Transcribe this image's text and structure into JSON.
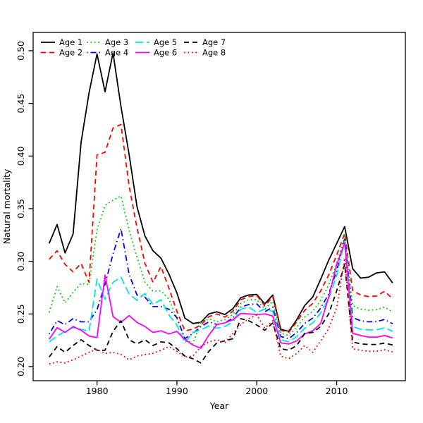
{
  "figure": {
    "background": "#ffffff",
    "text_color": "#000000"
  },
  "chart_data": {
    "type": "line",
    "title": "",
    "xlabel": "Year",
    "ylabel": "Natural mortality",
    "xlim": [
      1972.0,
      2018.6
    ],
    "ylim": [
      0.1866,
      0.5174
    ],
    "x_ticks": [
      1980,
      1990,
      2000,
      2010
    ],
    "y_ticks": [
      0.2,
      0.25,
      0.3,
      0.35,
      0.4,
      0.45,
      0.5
    ],
    "grid": false,
    "legend_position": "top-left",
    "legend_columns": 4,
    "legend_rows": 2,
    "x": [
      1974,
      1975,
      1976,
      1977,
      1978,
      1979,
      1980,
      1981,
      1982,
      1983,
      1984,
      1985,
      1986,
      1987,
      1988,
      1989,
      1990,
      1991,
      1992,
      1993,
      1994,
      1995,
      1996,
      1997,
      1998,
      1999,
      2000,
      2001,
      2002,
      2003,
      2004,
      2005,
      2006,
      2007,
      2008,
      2009,
      2010,
      2011,
      2012,
      2013,
      2014,
      2015,
      2016,
      2017
    ],
    "series": [
      {
        "name": "Age 1",
        "color": "#000000",
        "line_style": "solid",
        "dash": "",
        "values": [
          0.317,
          0.335,
          0.308,
          0.326,
          0.413,
          0.46,
          0.497,
          0.461,
          0.498,
          0.447,
          0.402,
          0.352,
          0.324,
          0.31,
          0.303,
          0.288,
          0.27,
          0.246,
          0.241,
          0.242,
          0.25,
          0.252,
          0.2495,
          0.255,
          0.2655,
          0.268,
          0.2685,
          0.2595,
          0.268,
          0.2355,
          0.2335,
          0.2445,
          0.258,
          0.266,
          0.283,
          0.301,
          0.317,
          0.333,
          0.293,
          0.284,
          0.285,
          0.289,
          0.29,
          0.2795
        ]
      },
      {
        "name": "Age 2",
        "color": "#FF0000",
        "line_style": "dashed",
        "dash": "7,5",
        "values": [
          0.302,
          0.31,
          0.297,
          0.29,
          0.298,
          0.28,
          0.401,
          0.4035,
          0.4265,
          0.43,
          0.372,
          0.332,
          0.298,
          0.28,
          0.295,
          0.2745,
          0.2525,
          0.234,
          0.2355,
          0.2395,
          0.2475,
          0.25,
          0.247,
          0.2525,
          0.2635,
          0.2665,
          0.2675,
          0.2575,
          0.2665,
          0.2345,
          0.2325,
          0.2425,
          0.2535,
          0.26,
          0.272,
          0.287,
          0.306,
          0.3265,
          0.272,
          0.268,
          0.2665,
          0.267,
          0.2715,
          0.2645
        ]
      },
      {
        "name": "Age 3",
        "color": "#00CD00",
        "line_style": "dotted",
        "dash": "1.8,3.6",
        "values": [
          0.2515,
          0.276,
          0.2605,
          0.2705,
          0.279,
          0.278,
          0.33,
          0.353,
          0.358,
          0.362,
          0.33,
          0.304,
          0.28,
          0.2715,
          0.272,
          0.264,
          0.246,
          0.2265,
          0.2215,
          0.2425,
          0.2455,
          0.2425,
          0.2445,
          0.2495,
          0.26,
          0.2635,
          0.2635,
          0.2545,
          0.262,
          0.2315,
          0.2295,
          0.2375,
          0.247,
          0.2525,
          0.263,
          0.2775,
          0.298,
          0.324,
          0.258,
          0.2545,
          0.2535,
          0.254,
          0.2565,
          0.2518
        ]
      },
      {
        "name": "Age 4",
        "color": "#0000FF",
        "line_style": "dotdash",
        "dash": "1.5,4,8,4",
        "values": [
          0.231,
          0.2435,
          0.24,
          0.2455,
          0.2425,
          0.2425,
          0.254,
          0.278,
          0.307,
          0.331,
          0.288,
          0.268,
          0.266,
          0.257,
          0.257,
          0.2545,
          0.2465,
          0.2265,
          0.2315,
          0.238,
          0.2425,
          0.24,
          0.2415,
          0.246,
          0.2565,
          0.259,
          0.2595,
          0.252,
          0.2565,
          0.2285,
          0.2265,
          0.2325,
          0.241,
          0.246,
          0.2555,
          0.269,
          0.291,
          0.321,
          0.2465,
          0.2435,
          0.2425,
          0.2428,
          0.2447,
          0.2407
        ]
      },
      {
        "name": "Age 5",
        "color": "#00E5E5",
        "line_style": "longdash",
        "dash": "11,5",
        "values": [
          0.2235,
          0.229,
          0.2335,
          0.237,
          0.2355,
          0.2335,
          0.283,
          0.264,
          0.28,
          0.285,
          0.269,
          0.263,
          0.2695,
          0.259,
          0.2635,
          0.249,
          0.2395,
          0.2225,
          0.2325,
          0.235,
          0.2385,
          0.2365,
          0.238,
          0.2425,
          0.2545,
          0.2565,
          0.2515,
          0.2545,
          0.2525,
          0.2255,
          0.2235,
          0.2285,
          0.2365,
          0.2415,
          0.251,
          0.2645,
          0.2865,
          0.319,
          0.238,
          0.2355,
          0.2348,
          0.235,
          0.2368,
          0.2335
        ]
      },
      {
        "name": "Age 6",
        "color": "#FF00FF",
        "line_style": "solid",
        "dash": "",
        "values": [
          0.226,
          0.237,
          0.2325,
          0.238,
          0.2345,
          0.229,
          0.2275,
          0.287,
          0.2475,
          0.242,
          0.2485,
          0.242,
          0.238,
          0.2325,
          0.234,
          0.231,
          0.2335,
          0.2255,
          0.2205,
          0.2175,
          0.23,
          0.24,
          0.2415,
          0.2445,
          0.2505,
          0.25,
          0.2495,
          0.25,
          0.248,
          0.2225,
          0.2215,
          0.2245,
          0.231,
          0.234,
          0.241,
          0.266,
          0.297,
          0.3175,
          0.2315,
          0.2295,
          0.228,
          0.228,
          0.2295,
          0.2272
        ]
      },
      {
        "name": "Age 7",
        "color": "#000000",
        "line_style": "dashed",
        "dash": "7,5",
        "values": [
          0.209,
          0.219,
          0.2135,
          0.22,
          0.2255,
          0.22,
          0.2155,
          0.2155,
          0.2335,
          0.2435,
          0.2255,
          0.2215,
          0.2255,
          0.22,
          0.2235,
          0.2225,
          0.217,
          0.21,
          0.2075,
          0.2035,
          0.2145,
          0.2225,
          0.2245,
          0.2265,
          0.2455,
          0.2435,
          0.2395,
          0.2345,
          0.2415,
          0.217,
          0.2155,
          0.22,
          0.2315,
          0.2325,
          0.238,
          0.25,
          0.272,
          0.297,
          0.2235,
          0.2215,
          0.221,
          0.221,
          0.2223,
          0.2205
        ]
      },
      {
        "name": "Age 8",
        "color": "#FF0000",
        "line_style": "dotted",
        "dash": "1.8,3.6",
        "values": [
          0.2025,
          0.2045,
          0.2035,
          0.2065,
          0.21,
          0.2135,
          0.2165,
          0.2125,
          0.2135,
          0.2115,
          0.2065,
          0.21,
          0.2115,
          0.2125,
          0.2155,
          0.219,
          0.2145,
          0.209,
          0.21,
          0.219,
          0.2235,
          0.2255,
          0.2225,
          0.2315,
          0.24,
          0.2455,
          0.249,
          0.2365,
          0.2435,
          0.21,
          0.2075,
          0.2125,
          0.22,
          0.2135,
          0.2245,
          0.236,
          0.256,
          0.303,
          0.217,
          0.2155,
          0.2145,
          0.2145,
          0.216,
          0.214
        ]
      }
    ]
  }
}
